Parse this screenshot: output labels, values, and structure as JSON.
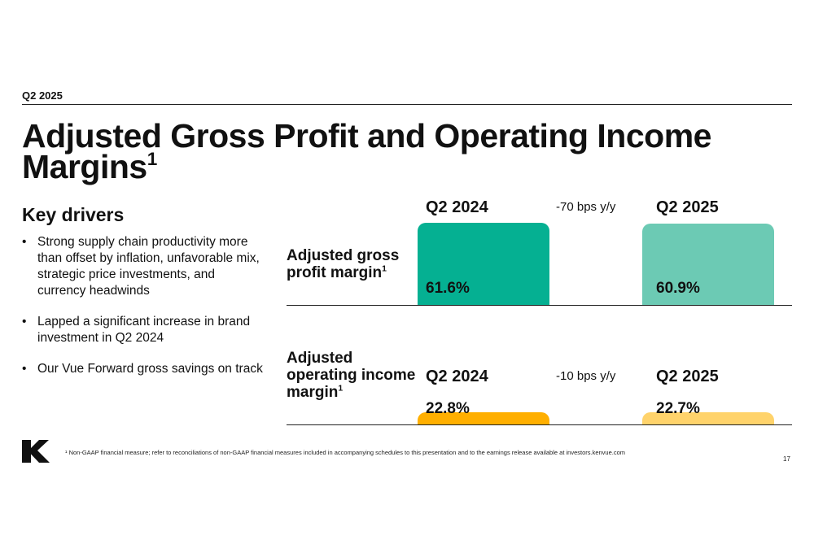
{
  "header": {
    "section_label": "Q2 2025"
  },
  "title": {
    "text": "Adjusted Gross Profit and Operating Income Margins",
    "footnote_marker": "1"
  },
  "drivers": {
    "heading": "Key drivers",
    "bullet_char": "•",
    "items": [
      "Strong supply chain productivity more than offset by inflation, unfavorable mix, strategic price investments, and currency headwinds",
      "Lapped a significant increase in brand investment in Q2 2024",
      "Our Vue Forward gross savings on track"
    ]
  },
  "chart_data": {
    "type": "bar",
    "categories": [
      "Q2 2024",
      "Q2 2025"
    ],
    "series": [
      {
        "name": "Adjusted gross profit margin",
        "footnote_marker": "1",
        "values": [
          61.6,
          60.9
        ],
        "labels": [
          "61.6%",
          "60.9%"
        ],
        "change_label": "-70 bps y/y",
        "colors": [
          "#05B092",
          "#6CCAB4"
        ]
      },
      {
        "name": "Adjusted operating income margin",
        "footnote_marker": "1",
        "values": [
          22.8,
          22.7
        ],
        "labels": [
          "22.8%",
          "22.7%"
        ],
        "change_label": "-10 bps y/y",
        "colors": [
          "#FFAF00",
          "#FFD36B"
        ]
      }
    ],
    "unit": "%"
  },
  "footer": {
    "logo_letter": "K",
    "footnote": "¹ Non-GAAP financial measure; refer to reconciliations of non-GAAP financial measures included in accompanying schedules to this presentation and to the earnings release available at investors.kenvue.com",
    "page_number": "17"
  }
}
